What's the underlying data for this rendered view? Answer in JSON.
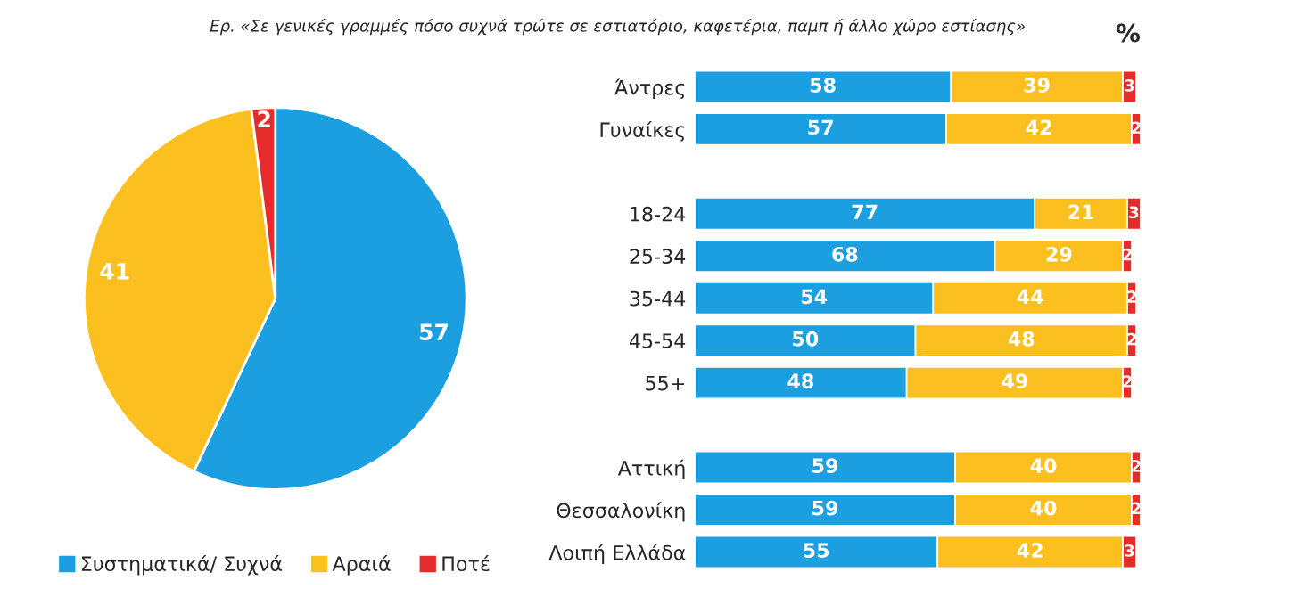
{
  "chart_data": [
    {
      "type": "pie",
      "title": "Ερ. «Σε γενικές γραμμές πόσο συχνά τρώτε σε εστιατόριο, καφετέρια, παμπ ή άλλο χώρο εστίασης»",
      "categories": [
        "Συστηματικά/ Συχνά",
        "Αραιά",
        "Ποτέ"
      ],
      "values": [
        57,
        41,
        2
      ],
      "colors": [
        "#1c9fe0",
        "#fbbf1f",
        "#e62b2b"
      ],
      "data_labels": true,
      "legend": "bottom"
    },
    {
      "type": "bar",
      "orientation": "horizontal",
      "stacked": true,
      "data_labels": true,
      "tick_labels": "y",
      "annotations": [
        "%"
      ],
      "categories": [
        "Άντρες",
        "Γυναίκες",
        null,
        "18-24",
        "25-34",
        "35-44",
        "45-54",
        "55+",
        null,
        "Αττική",
        "Θεσσαλονίκη",
        "Λοιπή Ελλάδα"
      ],
      "series": [
        {
          "color": "#1c9fe0",
          "values": [
            58,
            57,
            null,
            77,
            68,
            54,
            50,
            48,
            null,
            59,
            59,
            55
          ]
        },
        {
          "color": "#fbbf1f",
          "values": [
            39,
            42,
            null,
            21,
            29,
            44,
            48,
            49,
            null,
            40,
            40,
            42
          ]
        },
        {
          "color": "#e62b2b",
          "values": [
            3,
            2,
            null,
            3,
            2,
            2,
            2,
            2,
            null,
            2,
            2,
            3
          ]
        }
      ]
    }
  ]
}
